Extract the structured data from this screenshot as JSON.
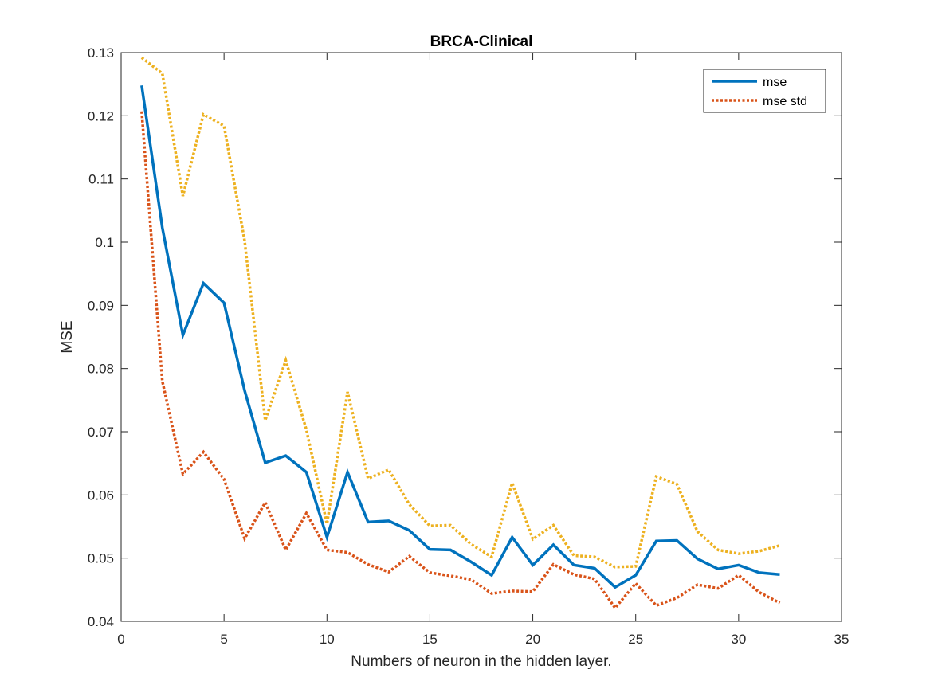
{
  "chart_data": {
    "type": "line",
    "title": "BRCA-Clinical",
    "xlabel": "Numbers of neuron in the hidden layer.",
    "ylabel": "MSE",
    "xlim": [
      0,
      35
    ],
    "ylim": [
      0.04,
      0.13
    ],
    "xticks": [
      0,
      5,
      10,
      15,
      20,
      25,
      30,
      35
    ],
    "xtick_labels": [
      "0",
      "5",
      "10",
      "15",
      "20",
      "25",
      "30",
      "35"
    ],
    "yticks": [
      0.04,
      0.05,
      0.06,
      0.07,
      0.08,
      0.09,
      0.1,
      0.11,
      0.12,
      0.13
    ],
    "ytick_labels": [
      "0.04",
      "0.05",
      "0.06",
      "0.07",
      "0.08",
      "0.09",
      "0.1",
      "0.11",
      "0.12",
      "0.13"
    ],
    "grid": false,
    "legend_position": "top-right",
    "x": [
      1,
      2,
      3,
      4,
      5,
      6,
      7,
      8,
      9,
      10,
      11,
      12,
      13,
      14,
      15,
      16,
      17,
      18,
      19,
      20,
      21,
      22,
      23,
      24,
      25,
      26,
      27,
      28,
      29,
      30,
      31,
      32
    ],
    "series": [
      {
        "name": "mse",
        "color": "#0072BD",
        "style": "solid",
        "in_legend": true,
        "values": [
          0.1248,
          0.1023,
          0.0853,
          0.0935,
          0.0904,
          0.0765,
          0.0651,
          0.0662,
          0.0636,
          0.0533,
          0.0636,
          0.0557,
          0.0559,
          0.0544,
          0.0514,
          0.0513,
          0.0494,
          0.0473,
          0.0533,
          0.0489,
          0.0521,
          0.0489,
          0.0484,
          0.0454,
          0.0473,
          0.0527,
          0.0528,
          0.0499,
          0.0483,
          0.0489,
          0.0477,
          0.0474
        ]
      },
      {
        "name": "mse std",
        "color": "#D95319",
        "style": "dotted",
        "in_legend": true,
        "values": [
          0.1207,
          0.078,
          0.0633,
          0.0668,
          0.0625,
          0.0531,
          0.0588,
          0.0513,
          0.0571,
          0.0513,
          0.0509,
          0.049,
          0.0478,
          0.0503,
          0.0477,
          0.0472,
          0.0466,
          0.0444,
          0.0448,
          0.0447,
          0.049,
          0.0474,
          0.0467,
          0.0421,
          0.046,
          0.0425,
          0.0437,
          0.0458,
          0.0452,
          0.0473,
          0.0446,
          0.0429
        ]
      },
      {
        "name": "",
        "color": "#EDB120",
        "style": "dotted",
        "in_legend": false,
        "values": [
          0.1292,
          0.1267,
          0.1073,
          0.1202,
          0.1184,
          0.1002,
          0.0718,
          0.0813,
          0.0703,
          0.0554,
          0.0763,
          0.0626,
          0.064,
          0.0585,
          0.0551,
          0.0552,
          0.0522,
          0.0502,
          0.0619,
          0.053,
          0.0552,
          0.0504,
          0.0502,
          0.0486,
          0.0487,
          0.0629,
          0.0617,
          0.0542,
          0.0513,
          0.0507,
          0.0511,
          0.052
        ]
      }
    ]
  }
}
